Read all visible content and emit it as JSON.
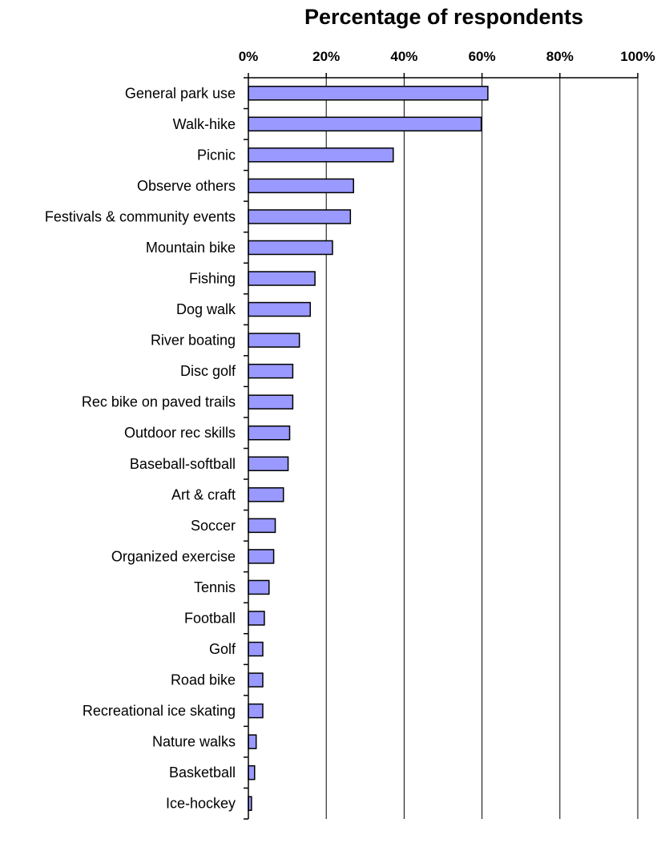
{
  "chart_data": {
    "type": "bar",
    "orientation": "horizontal",
    "title": "Percentage of respondents",
    "xlabel": "",
    "ylabel": "",
    "xlim": [
      0,
      100
    ],
    "x_ticks": [
      "0%",
      "20%",
      "40%",
      "60%",
      "80%",
      "100%"
    ],
    "x_tick_values": [
      0,
      20,
      40,
      60,
      80,
      100
    ],
    "x_axis_position": "top",
    "grid": true,
    "legend": "none",
    "bar_color": "#9999ff",
    "categories": [
      "General park use",
      "Walk-hike",
      "Picnic",
      "Observe others",
      "Festivals & community events",
      "Mountain bike",
      "Fishing",
      "Dog walk",
      "River boating",
      "Disc golf",
      "Rec bike on paved trails",
      "Outdoor rec skills",
      "Baseball-softball",
      "Art & craft",
      "Soccer",
      "Organized exercise",
      "Tennis",
      "Football",
      "Golf",
      "Road bike",
      "Recreational ice skating",
      "Nature walks",
      "Basketball",
      "Ice-hockey"
    ],
    "values": [
      61.5,
      59.8,
      37.2,
      27.0,
      26.2,
      21.6,
      17.1,
      15.9,
      13.1,
      11.4,
      11.4,
      10.6,
      10.2,
      9.0,
      6.9,
      6.5,
      5.3,
      4.1,
      3.7,
      3.7,
      3.7,
      2.0,
      1.6,
      0.8
    ]
  }
}
